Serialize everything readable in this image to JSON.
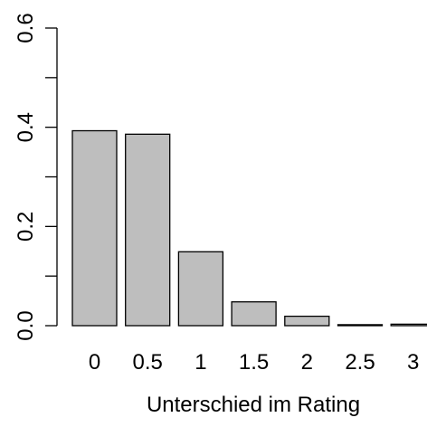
{
  "chart_data": {
    "type": "bar",
    "categories": [
      "0",
      "0.5",
      "1",
      "1.5",
      "2",
      "2.5",
      "3"
    ],
    "values": [
      0.393,
      0.386,
      0.149,
      0.048,
      0.019,
      0.002,
      0.003
    ],
    "xlabel": "Unterschied im Rating",
    "ylabel": "",
    "ylim": [
      0,
      0.6
    ],
    "yticks": [
      0.0,
      0.2,
      0.4,
      0.6
    ],
    "ytick_labels": [
      "0.0",
      "0.2",
      "0.4",
      "0.6"
    ],
    "yminor_ticks": [
      0.1,
      0.3,
      0.5
    ],
    "bar_color": "#bebebe",
    "grid": false,
    "legend": "none"
  }
}
